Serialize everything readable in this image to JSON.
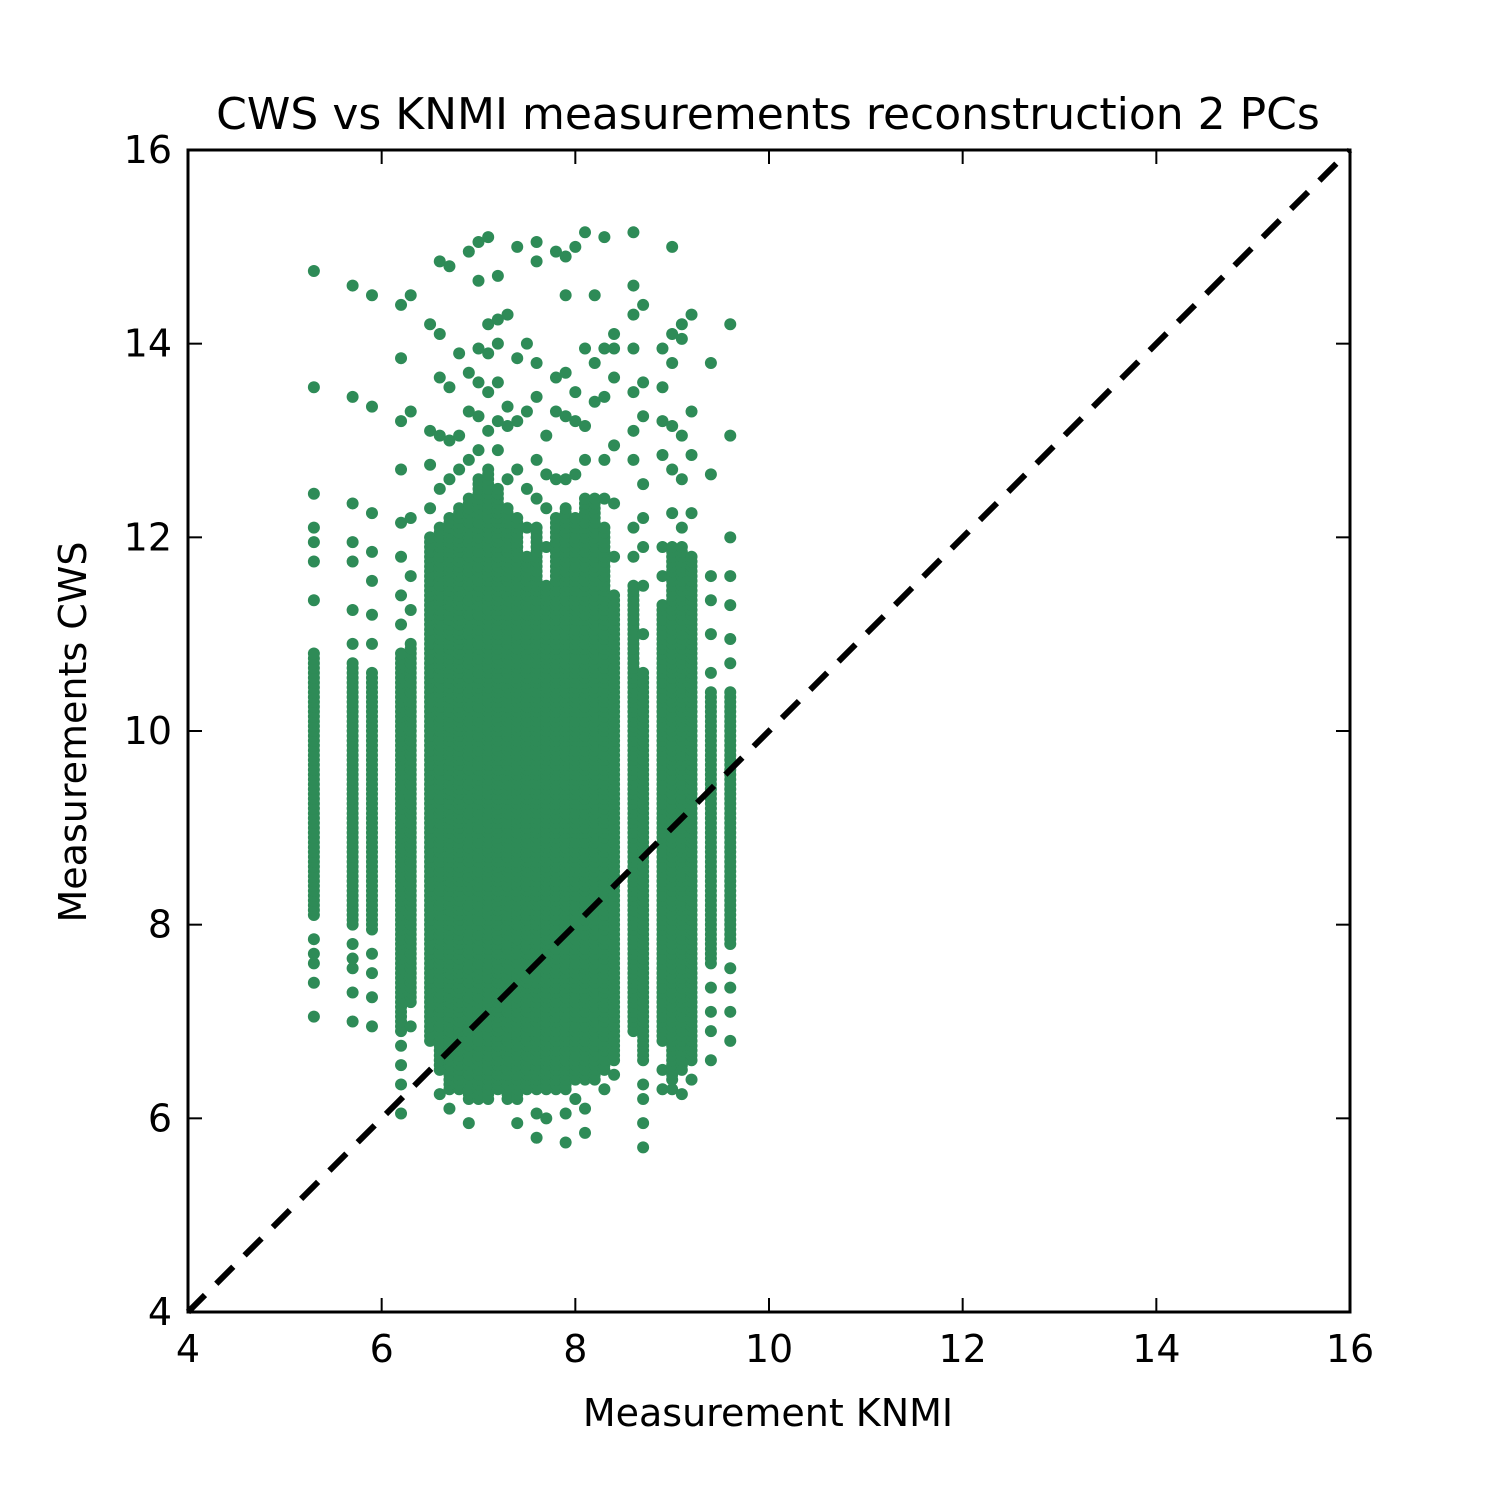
{
  "chart_data": {
    "type": "scatter",
    "title": "CWS vs KNMI measurements reconstruction 2 PCs",
    "xlabel": "Measurement KNMI",
    "ylabel": "Measurements CWS",
    "xlim": [
      4,
      16
    ],
    "ylim": [
      4,
      16
    ],
    "xticks": [
      "4",
      "6",
      "8",
      "10",
      "12",
      "14",
      "16"
    ],
    "yticks": [
      "4",
      "6",
      "8",
      "10",
      "12",
      "14",
      "16"
    ],
    "grid": false,
    "legend": "none",
    "marker_color": "#2e8b57",
    "reference_line": {
      "style": "dashed",
      "color": "#000000",
      "from": [
        4,
        4
      ],
      "to": [
        16,
        16
      ]
    },
    "columns": [
      {
        "x": 5.3,
        "dense": [
          8.1,
          10.8
        ],
        "outliers": [
          7.05,
          7.4,
          7.6,
          7.7,
          7.85,
          11.35,
          11.75,
          11.95,
          12.1,
          12.45,
          13.55,
          14.75
        ]
      },
      {
        "x": 5.7,
        "dense": [
          8.0,
          10.7
        ],
        "outliers": [
          7.0,
          7.3,
          7.55,
          7.65,
          7.8,
          10.9,
          11.25,
          11.75,
          11.95,
          12.35,
          13.45,
          14.6
        ]
      },
      {
        "x": 5.9,
        "dense": [
          7.95,
          10.6
        ],
        "outliers": [
          6.95,
          7.25,
          7.5,
          7.7,
          10.9,
          11.2,
          11.55,
          11.85,
          12.25,
          13.35,
          14.5
        ]
      },
      {
        "x": 6.2,
        "dense": [
          6.9,
          10.8
        ],
        "outliers": [
          6.05,
          6.35,
          6.55,
          6.75,
          11.1,
          11.4,
          11.8,
          12.15,
          12.7,
          13.2,
          13.85,
          14.4
        ]
      },
      {
        "x": 6.3,
        "dense": [
          7.2,
          10.9
        ],
        "outliers": [
          6.95,
          11.25,
          11.6,
          12.2,
          13.3,
          14.5
        ]
      },
      {
        "x": 6.5,
        "dense": [
          6.8,
          12.0
        ],
        "outliers": [
          12.3,
          12.75,
          13.1,
          14.2
        ]
      },
      {
        "x": 6.6,
        "dense": [
          6.5,
          12.1
        ],
        "outliers": [
          6.25,
          12.5,
          13.05,
          13.65,
          14.1,
          14.85
        ]
      },
      {
        "x": 6.7,
        "dense": [
          6.3,
          12.2
        ],
        "outliers": [
          6.1,
          12.6,
          13.0,
          13.55,
          14.8
        ]
      },
      {
        "x": 6.8,
        "dense": [
          6.3,
          12.3
        ],
        "outliers": [
          12.7,
          13.05,
          13.9
        ]
      },
      {
        "x": 6.9,
        "dense": [
          6.2,
          12.4
        ],
        "outliers": [
          5.95,
          12.8,
          13.3,
          13.7,
          14.95
        ]
      },
      {
        "x": 7.0,
        "dense": [
          6.2,
          12.6
        ],
        "outliers": [
          12.9,
          13.25,
          13.6,
          13.95,
          14.65,
          15.05
        ]
      },
      {
        "x": 7.1,
        "dense": [
          6.2,
          12.7
        ],
        "outliers": [
          13.1,
          13.5,
          13.9,
          14.2,
          15.1
        ]
      },
      {
        "x": 7.2,
        "dense": [
          6.3,
          12.5
        ],
        "outliers": [
          12.9,
          13.2,
          13.6,
          14.0,
          14.25,
          14.7
        ]
      },
      {
        "x": 7.3,
        "dense": [
          6.2,
          12.3
        ],
        "outliers": [
          12.6,
          13.15,
          13.35,
          14.3
        ]
      },
      {
        "x": 7.4,
        "dense": [
          6.2,
          12.2
        ],
        "outliers": [
          5.95,
          12.7,
          13.2,
          13.85,
          15.0
        ]
      },
      {
        "x": 7.5,
        "dense": [
          6.3,
          11.8
        ],
        "outliers": [
          12.1,
          12.5,
          13.3,
          14.0
        ]
      },
      {
        "x": 7.6,
        "dense": [
          6.3,
          12.1
        ],
        "outliers": [
          5.8,
          6.05,
          12.4,
          12.8,
          13.45,
          13.8,
          14.85,
          15.05
        ]
      },
      {
        "x": 7.7,
        "dense": [
          6.3,
          11.5
        ],
        "outliers": [
          6.0,
          11.9,
          12.3,
          12.65,
          13.05
        ]
      },
      {
        "x": 7.8,
        "dense": [
          6.3,
          12.2
        ],
        "outliers": [
          12.6,
          13.3,
          13.65,
          14.95
        ]
      },
      {
        "x": 7.9,
        "dense": [
          6.3,
          12.3
        ],
        "outliers": [
          5.75,
          6.05,
          12.6,
          13.25,
          13.7,
          14.5,
          14.9
        ]
      },
      {
        "x": 8.0,
        "dense": [
          6.4,
          12.2
        ],
        "outliers": [
          6.2,
          12.65,
          13.2,
          13.5,
          15.0
        ]
      },
      {
        "x": 8.1,
        "dense": [
          6.4,
          12.4
        ],
        "outliers": [
          5.85,
          6.1,
          12.8,
          13.15,
          13.95,
          15.15
        ]
      },
      {
        "x": 8.2,
        "dense": [
          6.4,
          12.4
        ],
        "outliers": [
          13.4,
          13.8,
          14.5
        ]
      },
      {
        "x": 8.3,
        "dense": [
          6.5,
          12.1
        ],
        "outliers": [
          6.3,
          12.4,
          12.8,
          13.45,
          13.95,
          15.1
        ]
      },
      {
        "x": 8.4,
        "dense": [
          6.6,
          11.4
        ],
        "outliers": [
          6.45,
          11.8,
          12.35,
          12.95,
          13.65,
          13.95,
          14.1
        ]
      },
      {
        "x": 8.6,
        "dense": [
          6.9,
          11.5
        ],
        "outliers": [
          11.8,
          12.1,
          12.8,
          13.1,
          13.5,
          13.95,
          14.3,
          14.6,
          15.15
        ]
      },
      {
        "x": 8.7,
        "dense": [
          6.6,
          10.6
        ],
        "outliers": [
          5.7,
          5.95,
          6.2,
          6.35,
          11.0,
          11.5,
          11.9,
          12.2,
          12.55,
          13.25,
          13.6,
          14.4
        ]
      },
      {
        "x": 8.9,
        "dense": [
          6.8,
          11.3
        ],
        "outliers": [
          6.3,
          6.5,
          11.6,
          11.9,
          12.85,
          13.2,
          13.55,
          13.95
        ]
      },
      {
        "x": 9.0,
        "dense": [
          6.4,
          11.9
        ],
        "outliers": [
          6.3,
          12.25,
          12.7,
          13.15,
          13.8,
          14.1,
          15.0
        ]
      },
      {
        "x": 9.1,
        "dense": [
          6.5,
          11.9
        ],
        "outliers": [
          6.25,
          12.1,
          12.6,
          13.05,
          14.05,
          14.2
        ]
      },
      {
        "x": 9.2,
        "dense": [
          6.6,
          11.8
        ],
        "outliers": [
          6.4,
          12.25,
          12.85,
          13.3,
          14.3
        ]
      },
      {
        "x": 9.4,
        "dense": [
          7.6,
          10.4
        ],
        "outliers": [
          6.6,
          6.9,
          7.1,
          7.35,
          10.6,
          11.0,
          11.35,
          11.6,
          12.65,
          13.8
        ]
      },
      {
        "x": 9.6,
        "dense": [
          7.8,
          10.4
        ],
        "outliers": [
          6.8,
          7.1,
          7.35,
          7.55,
          10.7,
          10.95,
          11.3,
          11.6,
          12.0,
          13.05,
          14.2
        ]
      }
    ]
  }
}
